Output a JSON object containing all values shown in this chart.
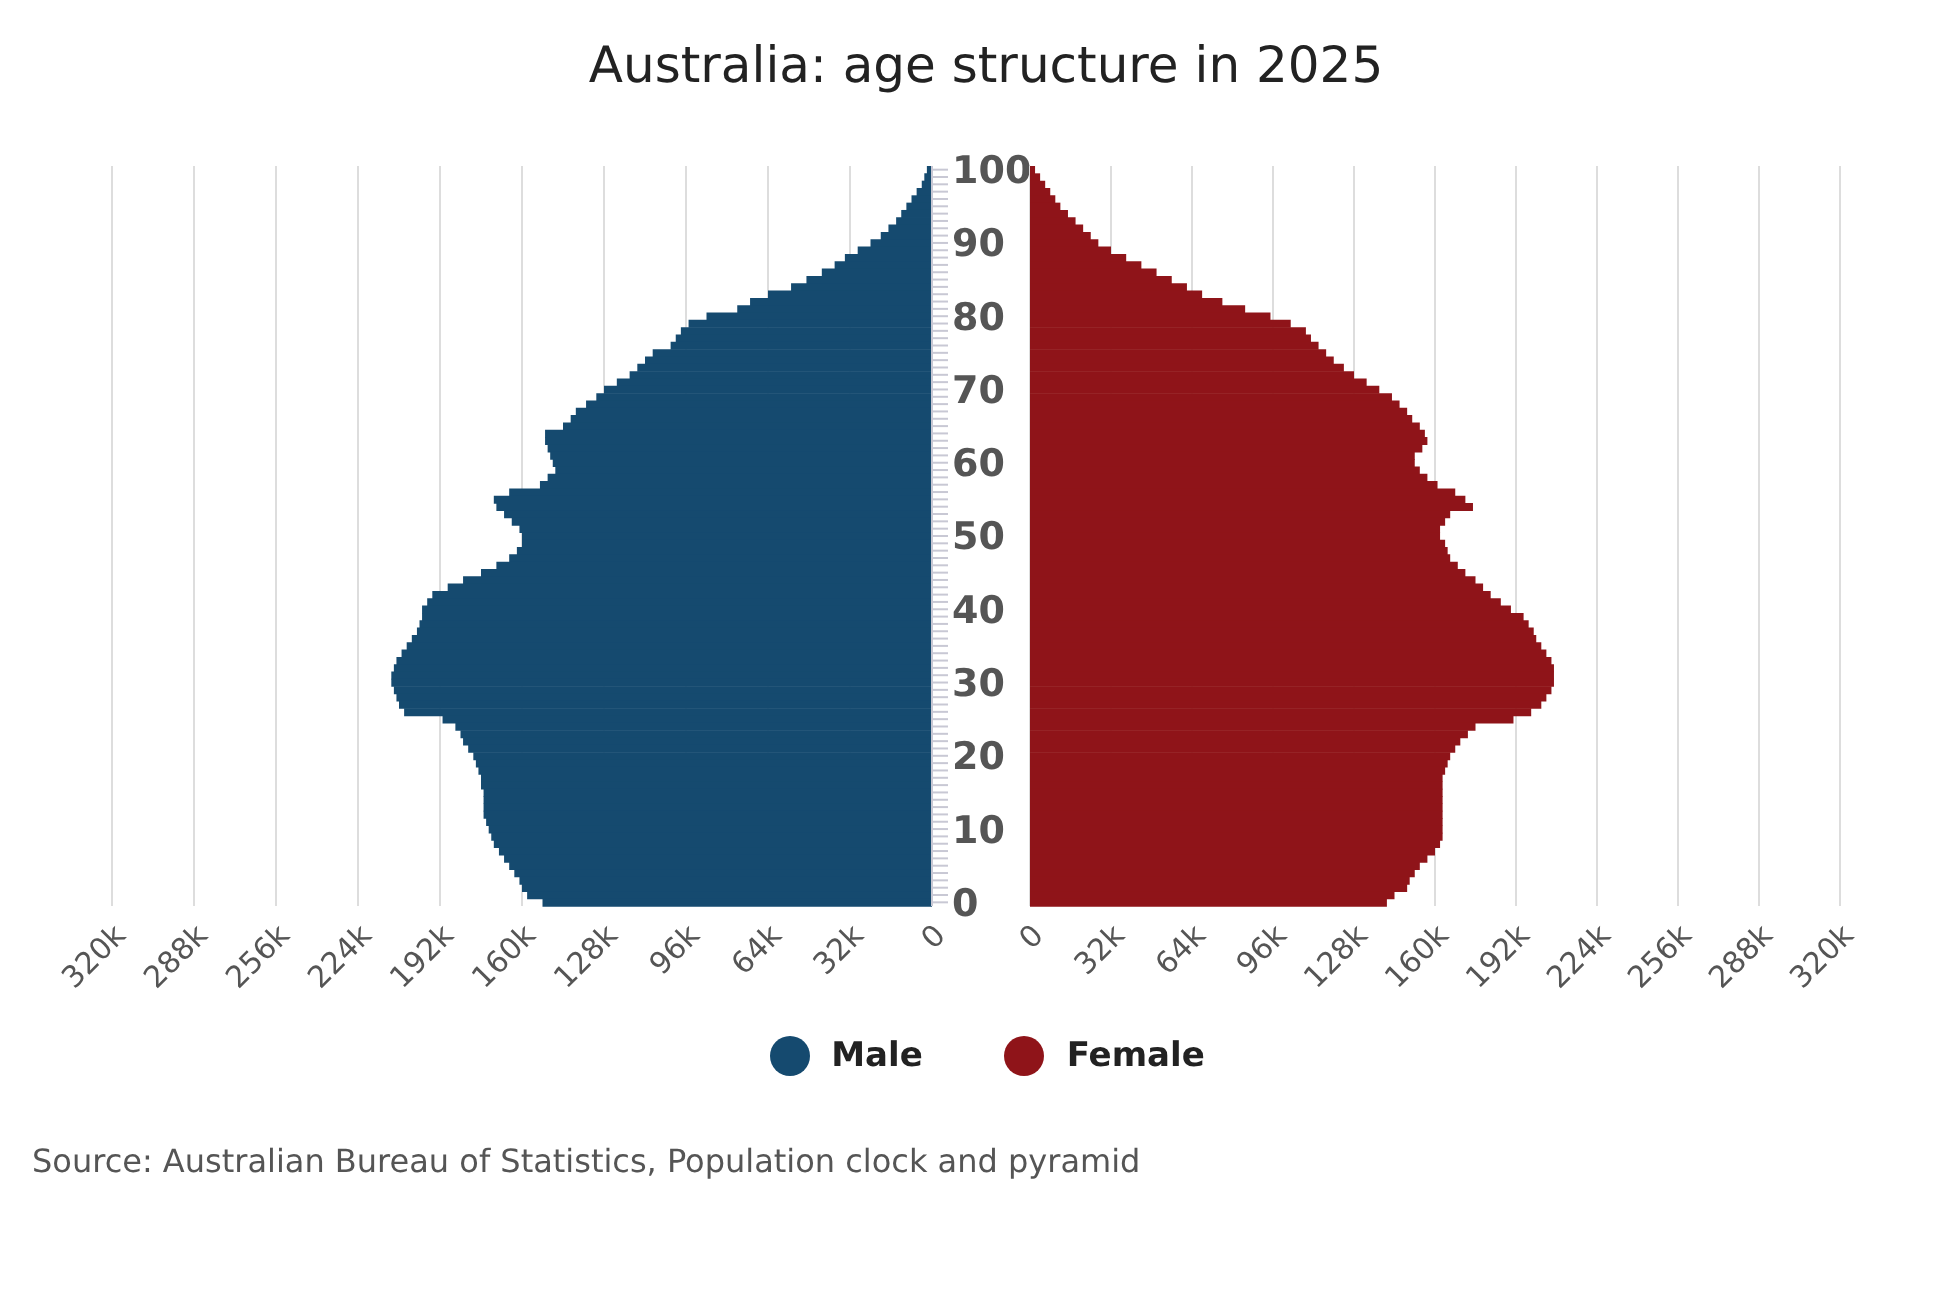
{
  "chart_data": [
    {
      "type": "bar",
      "orientation": "horizontal",
      "title": "Australia: age structure in 2025",
      "categories": [
        "100",
        null,
        null,
        null,
        null,
        null,
        null,
        null,
        null,
        null,
        "90",
        null,
        null,
        null,
        null,
        null,
        null,
        null,
        null,
        null,
        "80",
        null,
        null,
        null,
        null,
        null,
        null,
        null,
        null,
        null,
        "70",
        null,
        null,
        null,
        null,
        null,
        null,
        null,
        null,
        null,
        "60",
        null,
        null,
        null,
        null,
        null,
        null,
        null,
        null,
        null,
        "50",
        null,
        null,
        null,
        null,
        null,
        null,
        null,
        null,
        null,
        "40",
        null,
        null,
        null,
        null,
        null,
        null,
        null,
        null,
        null,
        "30",
        null,
        null,
        null,
        null,
        null,
        null,
        null,
        null,
        null,
        "20",
        null,
        null,
        null,
        null,
        null,
        null,
        null,
        null,
        null,
        "10",
        null,
        null,
        null,
        null,
        null,
        null,
        null,
        null,
        null,
        "0"
      ],
      "series": [
        {
          "name": "Male",
          "color": "#154a6f",
          "values": [
            2000,
            3000,
            4000,
            6000,
            8000,
            10000,
            12000,
            14000,
            17000,
            20000,
            24000,
            29000,
            34000,
            38000,
            43000,
            49000,
            55000,
            64000,
            71000,
            76000,
            88000,
            95000,
            98000,
            100000,
            102000,
            109000,
            112000,
            115000,
            118000,
            123000,
            128000,
            131000,
            135000,
            139000,
            141000,
            144000,
            151000,
            151000,
            150000,
            149000,
            148000,
            147000,
            150000,
            153000,
            165000,
            171000,
            170000,
            167000,
            164000,
            161000,
            160000,
            160000,
            162000,
            165000,
            170000,
            176000,
            183000,
            189000,
            195000,
            197000,
            199000,
            199000,
            200000,
            201000,
            203000,
            205000,
            207000,
            209000,
            210000,
            211000,
            211000,
            210000,
            209000,
            208000,
            206000,
            191000,
            186000,
            184000,
            183000,
            181000,
            179000,
            178000,
            177000,
            176000,
            176000,
            175000,
            175000,
            175000,
            175000,
            174000,
            173000,
            172000,
            171000,
            169000,
            167000,
            165000,
            163000,
            161000,
            160000,
            158000,
            152000
          ]
        }
      ],
      "xlim": [
        320000,
        0
      ],
      "xticks": [
        {
          "value": 320000,
          "label": "320k"
        },
        {
          "value": 288000,
          "label": "288k"
        },
        {
          "value": 256000,
          "label": "256k"
        },
        {
          "value": 224000,
          "label": "224k"
        },
        {
          "value": 192000,
          "label": "192k"
        },
        {
          "value": 160000,
          "label": "160k"
        },
        {
          "value": 128000,
          "label": "128k"
        },
        {
          "value": 96000,
          "label": "96k"
        },
        {
          "value": 64000,
          "label": "64k"
        },
        {
          "value": 32000,
          "label": "32k"
        },
        0
      ],
      "grid": "x",
      "legend": "bottom"
    },
    {
      "type": "bar",
      "orientation": "horizontal",
      "categories": [
        "100",
        null,
        null,
        null,
        null,
        null,
        null,
        null,
        null,
        null,
        "90",
        null,
        null,
        null,
        null,
        null,
        null,
        null,
        null,
        null,
        "80",
        null,
        null,
        null,
        null,
        null,
        null,
        null,
        null,
        null,
        "70",
        null,
        null,
        null,
        null,
        null,
        null,
        null,
        null,
        null,
        "60",
        null,
        null,
        null,
        null,
        null,
        null,
        null,
        null,
        null,
        "50",
        null,
        null,
        null,
        null,
        null,
        null,
        null,
        null,
        null,
        "40",
        null,
        null,
        null,
        null,
        null,
        null,
        null,
        null,
        null,
        "30",
        null,
        null,
        null,
        null,
        null,
        null,
        null,
        null,
        null,
        "20",
        null,
        null,
        null,
        null,
        null,
        null,
        null,
        null,
        null,
        "10",
        null,
        null,
        null,
        null,
        null,
        null,
        null,
        null,
        null,
        "0"
      ],
      "series": [
        {
          "name": "Female",
          "color": "#8f1419",
          "values": [
            2000,
            4000,
            6000,
            8000,
            10000,
            12000,
            15000,
            18000,
            21000,
            24000,
            27000,
            32000,
            38000,
            44000,
            50000,
            56000,
            62000,
            68000,
            76000,
            85000,
            95000,
            103000,
            109000,
            111000,
            114000,
            117000,
            120000,
            124000,
            128000,
            133000,
            138000,
            143000,
            146000,
            149000,
            151000,
            154000,
            156000,
            157000,
            155000,
            152000,
            152000,
            154000,
            157000,
            161000,
            168000,
            172000,
            175000,
            166000,
            164000,
            162000,
            162000,
            164000,
            165000,
            166000,
            169000,
            172000,
            176000,
            179000,
            182000,
            186000,
            190000,
            195000,
            197000,
            199000,
            200000,
            202000,
            204000,
            206000,
            207000,
            207000,
            207000,
            206000,
            204000,
            202000,
            198000,
            191000,
            176000,
            173000,
            170000,
            168000,
            166000,
            165000,
            164000,
            163000,
            163000,
            163000,
            163000,
            163000,
            163000,
            163000,
            163000,
            163000,
            162000,
            160000,
            157000,
            154000,
            152000,
            150000,
            149000,
            144000,
            141000
          ]
        }
      ],
      "xlim": [
        0,
        320000
      ],
      "xticks": [
        0,
        {
          "value": 32000,
          "label": "32k"
        },
        {
          "value": 64000,
          "label": "64k"
        },
        {
          "value": 96000,
          "label": "96k"
        },
        {
          "value": 128000,
          "label": "128k"
        },
        {
          "value": 160000,
          "label": "160k"
        },
        {
          "value": 192000,
          "label": "192k"
        },
        {
          "value": 224000,
          "label": "224k"
        },
        {
          "value": 256000,
          "label": "256k"
        },
        {
          "value": 288000,
          "label": "288k"
        },
        {
          "value": 320000,
          "label": "320k"
        }
      ],
      "grid": "x",
      "legend": "bottom",
      "tick_labels": "x",
      "annotations": [
        "Source: Australian Bureau of Statistics, Population clock and pyramid"
      ]
    }
  ]
}
